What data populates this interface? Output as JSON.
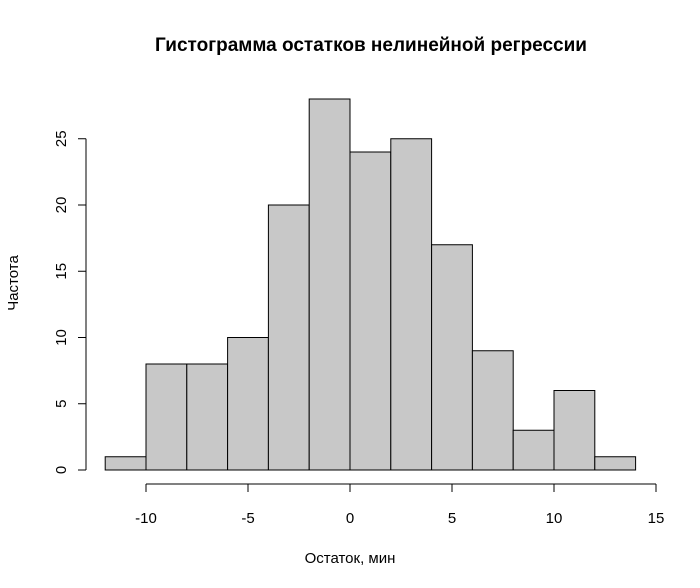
{
  "chart_data": {
    "type": "bar",
    "title": "Гистограмма остатков нелинейной регрессии",
    "xlabel": "Остаток, мин",
    "ylabel": "Частота",
    "bin_edges": [
      -12,
      -10,
      -8,
      -6,
      -4,
      -2,
      0,
      2,
      4,
      6,
      8,
      10,
      12,
      14
    ],
    "values": [
      1,
      8,
      8,
      10,
      20,
      28,
      24,
      25,
      17,
      9,
      3,
      6,
      1
    ],
    "xlim": [
      -10,
      15
    ],
    "ylim": [
      0,
      28
    ],
    "x_ticks": [
      -10,
      -5,
      0,
      5,
      10,
      15
    ],
    "x_tick_labels": [
      "-10",
      "-5",
      "0",
      "5",
      "10",
      "15"
    ],
    "y_ticks": [
      0,
      5,
      10,
      15,
      20,
      25
    ],
    "y_tick_labels": [
      "0",
      "5",
      "10",
      "15",
      "20",
      "25"
    ],
    "grid": false,
    "colors": {
      "bar_fill": "#c8c8c8",
      "bar_stroke": "#000000"
    }
  }
}
